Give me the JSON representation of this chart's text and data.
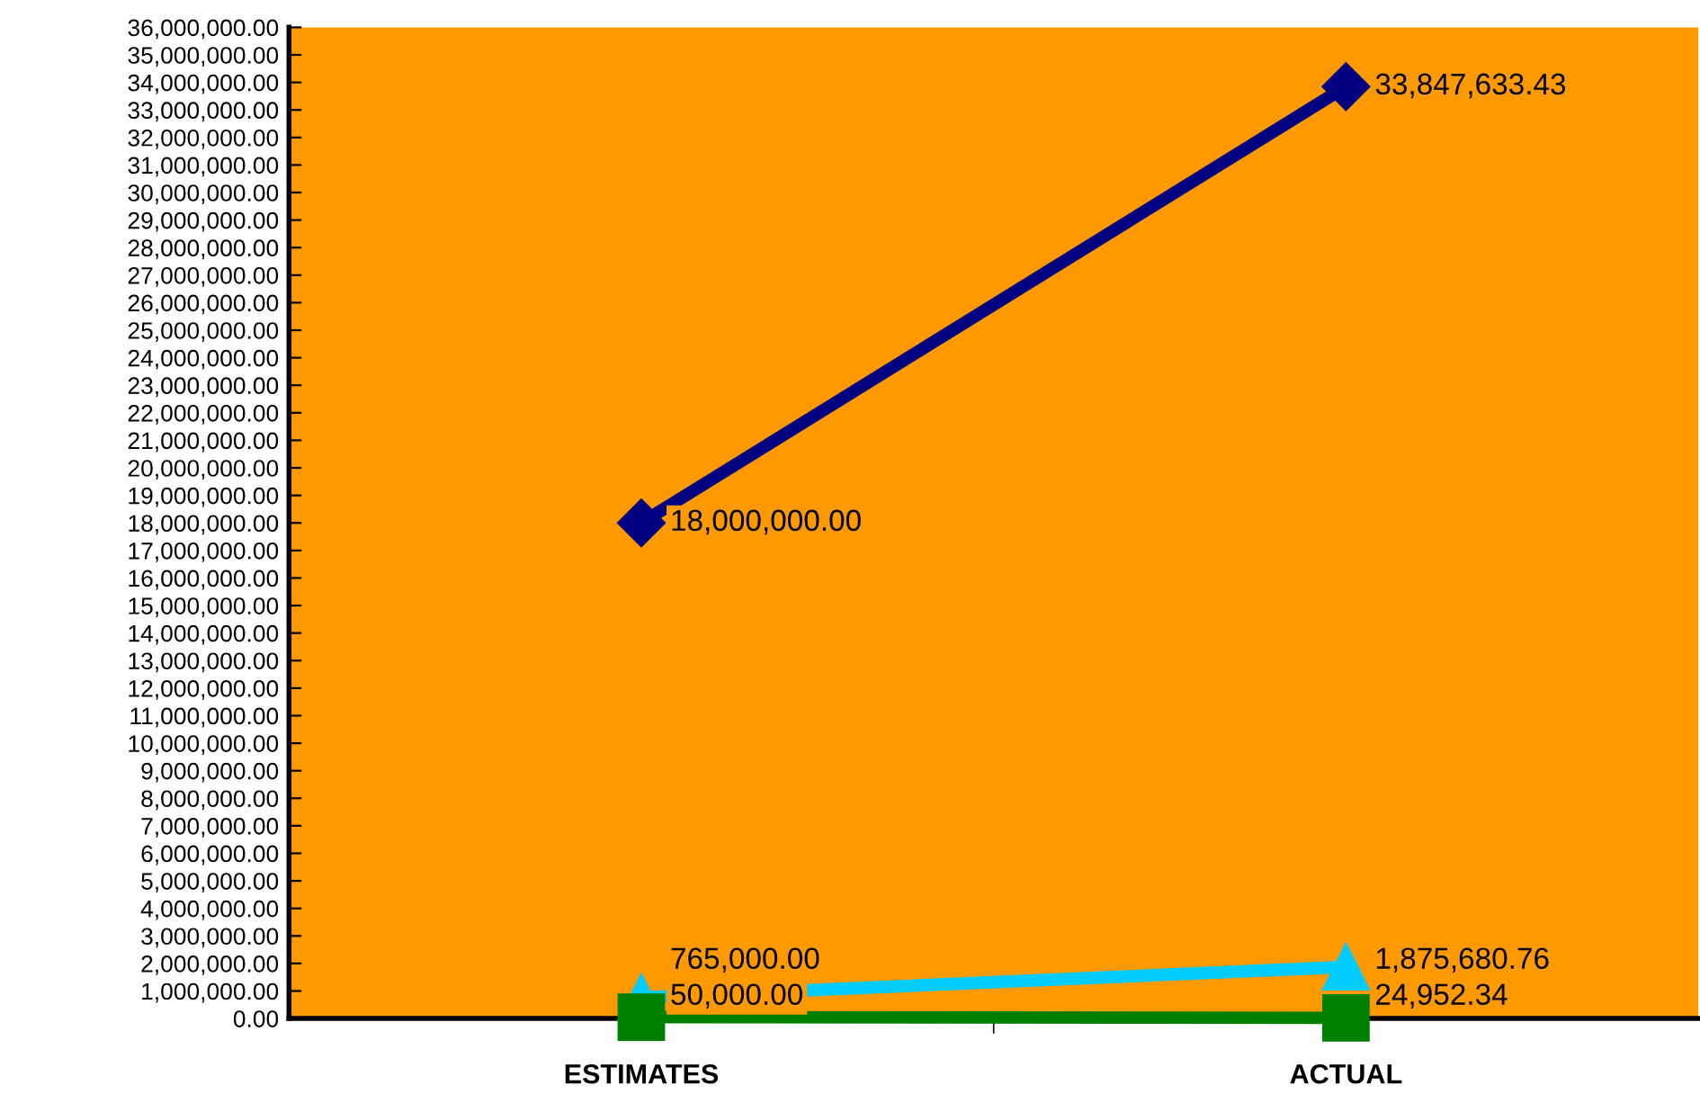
{
  "chart_data": {
    "type": "line",
    "categories": [
      "ESTIMATES",
      "ACTUAL"
    ],
    "series": [
      {
        "color": "#000080",
        "marker": "diamond",
        "values": [
          18000000,
          33847633.43
        ],
        "value_labels": [
          "18,000,000.00",
          "33,847,633.43"
        ]
      },
      {
        "color": "#00ccff",
        "marker": "triangle",
        "values": [
          765000,
          1875680.76
        ],
        "value_labels": [
          "765,000.00",
          "1,875,680.76"
        ]
      },
      {
        "color": "#008000",
        "marker": "square",
        "values": [
          50000,
          24952.34
        ],
        "value_labels": [
          "50,000.00",
          "24,952.34"
        ]
      }
    ],
    "ylim": [
      0,
      36000000
    ],
    "yticks": [
      {
        "value": 0,
        "label": "0.00"
      },
      {
        "value": 1000000,
        "label": "1,000,000.00"
      },
      {
        "value": 2000000,
        "label": "2,000,000.00"
      },
      {
        "value": 3000000,
        "label": "3,000,000.00"
      },
      {
        "value": 4000000,
        "label": "4,000,000.00"
      },
      {
        "value": 5000000,
        "label": "5,000,000.00"
      },
      {
        "value": 6000000,
        "label": "6,000,000.00"
      },
      {
        "value": 7000000,
        "label": "7,000,000.00"
      },
      {
        "value": 8000000,
        "label": "8,000,000.00"
      },
      {
        "value": 9000000,
        "label": "9,000,000.00"
      },
      {
        "value": 10000000,
        "label": "10,000,000.00"
      },
      {
        "value": 11000000,
        "label": "11,000,000.00"
      },
      {
        "value": 12000000,
        "label": "12,000,000.00"
      },
      {
        "value": 13000000,
        "label": "13,000,000.00"
      },
      {
        "value": 14000000,
        "label": "14,000,000.00"
      },
      {
        "value": 15000000,
        "label": "15,000,000.00"
      },
      {
        "value": 16000000,
        "label": "16,000,000.00"
      },
      {
        "value": 17000000,
        "label": "17,000,000.00"
      },
      {
        "value": 18000000,
        "label": "18,000,000.00"
      },
      {
        "value": 19000000,
        "label": "19,000,000.00"
      },
      {
        "value": 20000000,
        "label": "20,000,000.00"
      },
      {
        "value": 21000000,
        "label": "21,000,000.00"
      },
      {
        "value": 22000000,
        "label": "22,000,000.00"
      },
      {
        "value": 23000000,
        "label": "23,000,000.00"
      },
      {
        "value": 24000000,
        "label": "24,000,000.00"
      },
      {
        "value": 25000000,
        "label": "25,000,000.00"
      },
      {
        "value": 26000000,
        "label": "26,000,000.00"
      },
      {
        "value": 27000000,
        "label": "27,000,000.00"
      },
      {
        "value": 28000000,
        "label": "28,000,000.00"
      },
      {
        "value": 29000000,
        "label": "29,000,000.00"
      },
      {
        "value": 30000000,
        "label": "30,000,000.00"
      },
      {
        "value": 31000000,
        "label": "31,000,000.00"
      },
      {
        "value": 32000000,
        "label": "32,000,000.00"
      },
      {
        "value": 33000000,
        "label": "33,000,000.00"
      },
      {
        "value": 34000000,
        "label": "34,000,000.00"
      },
      {
        "value": 35000000,
        "label": "35,000,000.00"
      },
      {
        "value": 36000000,
        "label": "36,000,000.00"
      }
    ],
    "grid": false,
    "legend": false
  }
}
